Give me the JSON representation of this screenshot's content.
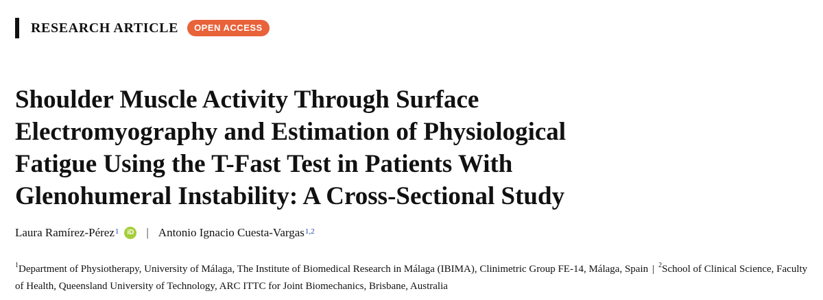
{
  "header": {
    "article_type": "RESEARCH ARTICLE",
    "badge": "OPEN ACCESS",
    "accent_color": "#e8623a"
  },
  "title_lines": [
    "Shoulder Muscle Activity Through Surface",
    "Electromyography and Estimation of Physiological",
    "Fatigue Using the T-Fast Test in Patients With",
    "Glenohumeral Instability: A Cross-Sectional Study"
  ],
  "authors": [
    {
      "name": "Laura Ramírez-Pérez",
      "affil": "1",
      "orcid": true,
      "orcid_icon": "orcid-icon"
    },
    {
      "name": "Antonio Ignacio Cuesta-Vargas",
      "affil": "1,2",
      "orcid": false
    }
  ],
  "author_separator": "|",
  "affiliations": [
    {
      "num": "1",
      "text": "Department of Physiotherapy, University of Málaga, The Institute of Biomedical Research in Málaga (IBIMA), Clinimetric Group FE-14, Málaga, Spain"
    },
    {
      "num": "2",
      "text": "School of Clinical Science, Faculty of Health, Queensland University of Technology, ARC ITTC for Joint Biomechanics, Brisbane, Australia"
    }
  ],
  "affiliation_separator": "|"
}
